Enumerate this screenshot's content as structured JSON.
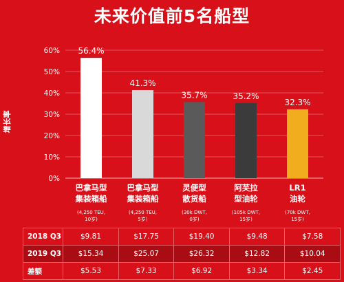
{
  "title": "未来价值前5名船型",
  "colors": {
    "background": "#d7101a",
    "bars": [
      "#ffffff",
      "#d9d9d9",
      "#5a5a5a",
      "#3b3b3b",
      "#f2ad1e"
    ]
  },
  "chart_data": {
    "type": "bar",
    "ylabel": "增长率",
    "ylim": [
      0,
      60
    ],
    "yticks": [
      "0%",
      "10%",
      "20%",
      "30%",
      "40%",
      "50%",
      "60%"
    ],
    "categories": [
      {
        "name_lines": [
          "巴拿马型",
          "集装箱船"
        ],
        "spec_lines": [
          "(4,250 TEU,",
          "10岁)"
        ]
      },
      {
        "name_lines": [
          "巴拿马型",
          "集装箱船"
        ],
        "spec_lines": [
          "(4,250 TEU,",
          "5岁)"
        ]
      },
      {
        "name_lines": [
          "灵便型",
          "散货船"
        ],
        "spec_lines": [
          "(30k DWT,",
          "0岁)"
        ]
      },
      {
        "name_lines": [
          "阿芙拉",
          "型油轮"
        ],
        "spec_lines": [
          "(105k DWT,",
          "15岁)"
        ]
      },
      {
        "name_lines": [
          "LR1",
          "油轮"
        ],
        "spec_lines": [
          "(70k DWT,",
          "15岁)"
        ]
      }
    ],
    "values": [
      56.4,
      41.3,
      35.7,
      35.2,
      32.3
    ],
    "value_labels": [
      "56.4%",
      "41.3%",
      "35.7%",
      "35.2%",
      "32.3%"
    ]
  },
  "table": {
    "rows": [
      {
        "label": "2018 Q3",
        "values": [
          "$9.81",
          "$17.75",
          "$19.40",
          "$9.48",
          "$7.58"
        ]
      },
      {
        "label": "2019 Q3",
        "values": [
          "$15.34",
          "$25.07",
          "$26.32",
          "$12.82",
          "$10.04"
        ]
      },
      {
        "label": "差额",
        "values": [
          "$5.53",
          "$7.33",
          "$6.92",
          "$3.34",
          "$2.45"
        ]
      }
    ]
  }
}
